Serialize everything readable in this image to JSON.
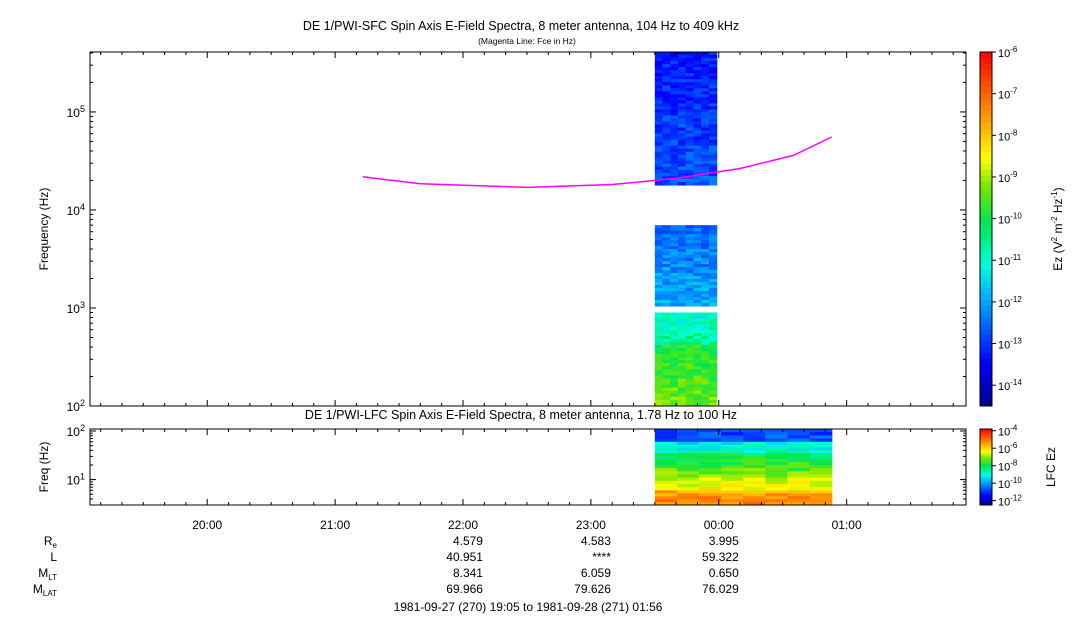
{
  "chart_data": [
    {
      "type": "heatmap",
      "title": "DE 1/PWI-SFC  Spin Axis E-Field Spectra, 8 meter antenna, 104 Hz to 409 kHz",
      "subtitle": "(Magenta Line: Fce in Hz)",
      "ylabel": "Frequency (Hz)",
      "y_scale": "log",
      "ylim": [
        100,
        409000
      ],
      "y_ticks": [
        {
          "value": 100,
          "base": "10",
          "exp": "2"
        },
        {
          "value": 1000,
          "base": "10",
          "exp": "3"
        },
        {
          "value": 10000,
          "base": "10",
          "exp": "4"
        },
        {
          "value": 100000,
          "base": "10",
          "exp": "5"
        }
      ],
      "data_time_range": [
        "23:30",
        "23:59"
      ],
      "spectra_bands": [
        {
          "f_low": 18000,
          "f_high": 409000,
          "log10_ez": -13
        },
        {
          "f_low": 1050,
          "f_high": 7000,
          "log10_ez": -12.2
        },
        {
          "f_low": 420,
          "f_high": 900,
          "log10_ez": -10.8
        },
        {
          "f_low": 100,
          "f_high": 420,
          "log10_ez": -9.6
        }
      ],
      "fce_line": {
        "name": "Fce",
        "color": "#ff00ff",
        "points": [
          {
            "t": "21:13",
            "f": 21800
          },
          {
            "t": "21:40",
            "f": 18500
          },
          {
            "t": "22:30",
            "f": 17000
          },
          {
            "t": "23:10",
            "f": 18200
          },
          {
            "t": "23:40",
            "f": 21000
          },
          {
            "t": "00:10",
            "f": 26500
          },
          {
            "t": "00:35",
            "f": 36000
          },
          {
            "t": "00:53",
            "f": 55500
          }
        ]
      },
      "colorbar": {
        "label": "Ez (V2 m-2 Hz-1)",
        "range_log10": [
          -14.5,
          -6
        ],
        "ticks": [
          {
            "value": -6,
            "base": "10",
            "exp": "-6"
          },
          {
            "value": -7,
            "base": "10",
            "exp": "-7"
          },
          {
            "value": -8,
            "base": "10",
            "exp": "-8"
          },
          {
            "value": -9,
            "base": "10",
            "exp": "-9"
          },
          {
            "value": -10,
            "base": "10",
            "exp": "-10"
          },
          {
            "value": -11,
            "base": "10",
            "exp": "-11"
          },
          {
            "value": -12,
            "base": "10",
            "exp": "-12"
          },
          {
            "value": -13,
            "base": "10",
            "exp": "-13"
          },
          {
            "value": -14,
            "base": "10",
            "exp": "-14"
          }
        ]
      }
    },
    {
      "type": "heatmap",
      "title": "DE 1/PWI-LFC  Spin Axis E-Field Spectra, 8 meter antenna, 1.78 Hz to 100 Hz",
      "ylabel": "Freq (Hz)",
      "y_scale": "log",
      "ylim": [
        3,
        110
      ],
      "y_ticks": [
        {
          "value": 10,
          "base": "10",
          "exp": "1"
        },
        {
          "value": 100,
          "base": "10",
          "exp": "2"
        }
      ],
      "data_time_range": [
        "23:30",
        "00:53"
      ],
      "spectra_bands": [
        {
          "f_low": 60,
          "f_high": 110,
          "log10_ez": -10.7
        },
        {
          "f_low": 35,
          "f_high": 60,
          "log10_ez": -9
        },
        {
          "f_low": 20,
          "f_high": 35,
          "log10_ez": -7.8
        },
        {
          "f_low": 11,
          "f_high": 20,
          "log10_ez": -7.2
        },
        {
          "f_low": 6,
          "f_high": 11,
          "log10_ez": -6.4
        },
        {
          "f_low": 3,
          "f_high": 6,
          "log10_ez": -5.3
        }
      ],
      "colorbar": {
        "label": "LFC Ez",
        "range_log10": [
          -12.5,
          -3.8
        ],
        "ticks": [
          {
            "value": -4,
            "base": "10",
            "exp": "-4"
          },
          {
            "value": -6,
            "base": "10",
            "exp": "-6"
          },
          {
            "value": -8,
            "base": "10",
            "exp": "-8"
          },
          {
            "value": -10,
            "base": "10",
            "exp": "-10"
          },
          {
            "value": -12,
            "base": "10",
            "exp": "-12"
          }
        ]
      }
    }
  ],
  "time_axis": {
    "start": "19:05",
    "end": "01:56",
    "major_ticks": [
      "20:00",
      "21:00",
      "22:00",
      "23:00",
      "00:00",
      "01:00"
    ]
  },
  "ephemeris": {
    "labels": [
      {
        "main": "R",
        "sub": "e"
      },
      {
        "main": "L",
        "sub": ""
      },
      {
        "main": "M",
        "sub": "LT"
      },
      {
        "main": "M",
        "sub": "LAT"
      }
    ],
    "columns": [
      {
        "time": "22:00",
        "values": [
          "4.579",
          "40.951",
          "8.341",
          "69.966"
        ]
      },
      {
        "time": "23:00",
        "values": [
          "4.583",
          "****",
          "6.059",
          "79.626"
        ]
      },
      {
        "time": "00:00",
        "values": [
          "3.995",
          "59.322",
          "0.650",
          "76.029"
        ]
      }
    ],
    "date_range": "1981-09-27 (270) 19:05 to 1981-09-28 (271) 01:56"
  }
}
